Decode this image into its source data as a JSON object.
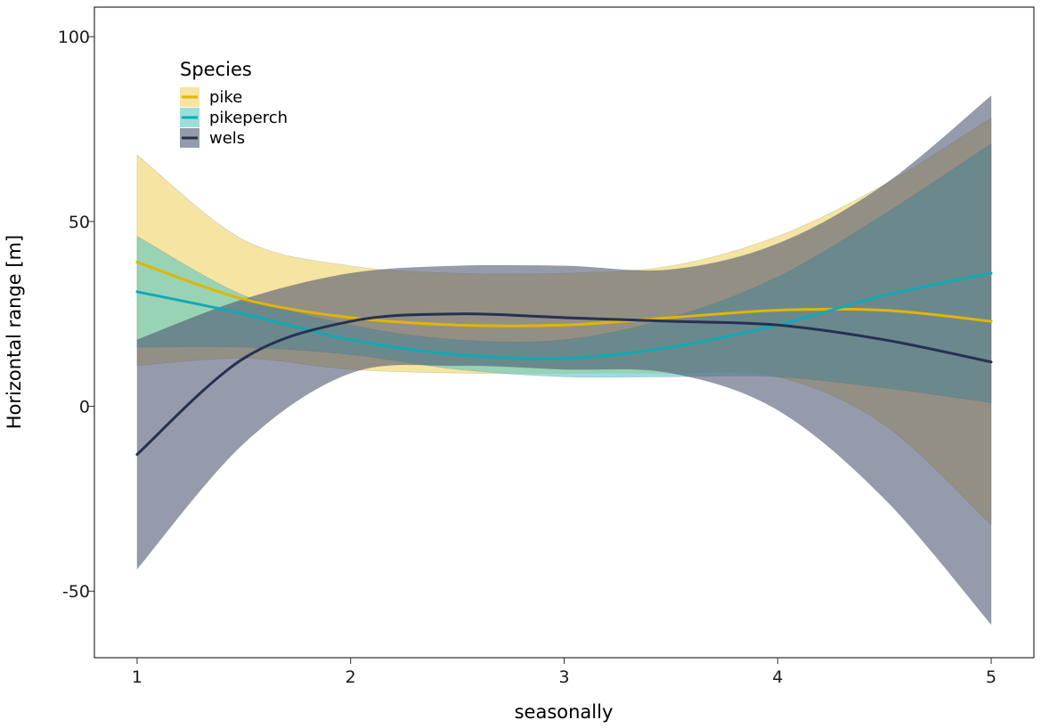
{
  "chart_data": {
    "type": "line",
    "xlabel": "seasonally",
    "ylabel": "Horizontal range [m]",
    "xlim": [
      0.8,
      5.2
    ],
    "ylim": [
      -68,
      108
    ],
    "xticks": [
      1,
      2,
      3,
      4,
      5
    ],
    "yticks": [
      -50,
      0,
      50,
      100
    ],
    "x": [
      1,
      1.5,
      2,
      2.5,
      3,
      3.5,
      4,
      4.5,
      5
    ],
    "legend_title": "Species",
    "legend_position": "top-left",
    "grid": false,
    "series": [
      {
        "name": "pike",
        "color": "#E3B400",
        "fill": "#F0D060",
        "values": [
          39,
          29,
          24,
          22,
          22,
          24,
          26,
          26,
          23
        ],
        "lower": [
          11,
          13,
          10,
          9,
          9,
          9,
          8,
          -5,
          -32
        ],
        "upper": [
          68,
          45,
          38,
          36,
          36,
          38,
          46,
          60,
          78
        ]
      },
      {
        "name": "pikeperch",
        "color": "#12A9B6",
        "fill": "#55C7C3",
        "values": [
          31,
          25,
          18,
          14,
          13,
          16,
          22,
          30,
          36
        ],
        "lower": [
          16,
          16,
          14,
          10,
          8,
          8,
          8,
          5,
          1
        ],
        "upper": [
          46,
          30,
          22,
          18,
          18,
          24,
          35,
          52,
          71
        ]
      },
      {
        "name": "wels",
        "color": "#263152",
        "fill": "#4A536E",
        "values": [
          -13,
          13,
          23,
          25,
          24,
          23,
          22,
          18,
          12
        ],
        "lower": [
          -44,
          -10,
          9,
          11,
          10,
          9,
          -1,
          -25,
          -59
        ],
        "upper": [
          18,
          29,
          36,
          38,
          38,
          37,
          44,
          60,
          84
        ]
      }
    ]
  }
}
